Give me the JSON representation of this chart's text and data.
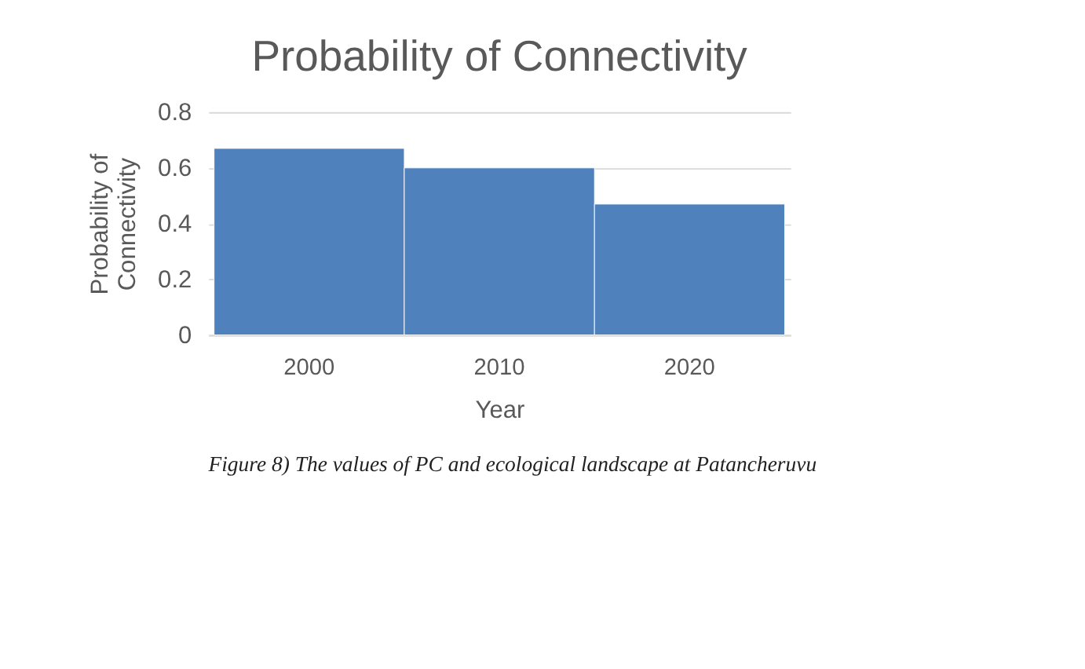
{
  "chart_data": {
    "type": "bar",
    "title": "Probability of Connectivity",
    "categories": [
      "2000",
      "2010",
      "2020"
    ],
    "values": [
      0.67,
      0.6,
      0.47
    ],
    "color": "#4f81bd",
    "xlabel": "Year",
    "ylabel": "Probability of\nConnectivity",
    "ylim": [
      0,
      0.8
    ],
    "yticks": [
      0,
      0.2,
      0.4,
      0.6,
      0.8
    ],
    "grid": "y",
    "annotations": [
      "Figure 8) The values of PC and ecological landscape at Patancheruvu"
    ]
  }
}
